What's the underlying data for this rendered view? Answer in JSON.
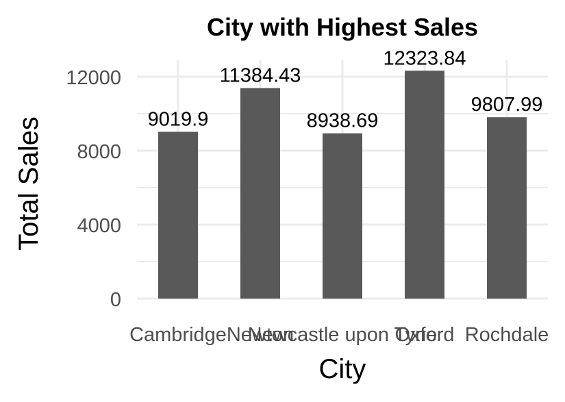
{
  "chart_data": {
    "type": "bar",
    "title": "City with Highest Sales",
    "xlabel": "City",
    "ylabel": "Total Sales",
    "categories": [
      "Cambridge",
      "Newton",
      "Newcastle upon Tyne",
      "Oxford",
      "Rochdale"
    ],
    "values": [
      9019.9,
      11384.43,
      8938.69,
      12323.84,
      9807.99
    ],
    "data_labels": [
      "9019.9",
      "11384.43",
      "8938.69",
      "12323.84",
      "9807.99"
    ],
    "ylim": [
      0,
      12400
    ],
    "y_ticks": [
      0,
      4000,
      8000,
      12000
    ],
    "y_tick_labels": [
      "0",
      "4000",
      "8000",
      "12000"
    ],
    "y_minor_ticks": [
      2000,
      6000,
      10000
    ],
    "grid": true,
    "legend": "none",
    "colors": {
      "bar": "#595959",
      "grid": "#ebebeb",
      "background": "#ffffff"
    }
  }
}
